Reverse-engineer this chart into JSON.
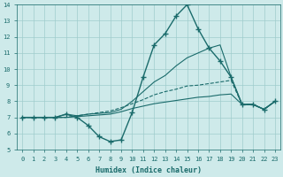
{
  "xlabel": "Humidex (Indice chaleur)",
  "xlim": [
    -0.5,
    23.5
  ],
  "ylim": [
    5,
    14
  ],
  "yticks": [
    5,
    6,
    7,
    8,
    9,
    10,
    11,
    12,
    13,
    14
  ],
  "xticks": [
    0,
    1,
    2,
    3,
    4,
    5,
    6,
    7,
    8,
    9,
    10,
    11,
    12,
    13,
    14,
    15,
    16,
    17,
    18,
    19,
    20,
    21,
    22,
    23
  ],
  "background_color": "#ceeaea",
  "line_color": "#1a6b6b",
  "grid_color": "#a0cccc",
  "series_main": [
    7.0,
    7.0,
    7.0,
    7.0,
    7.2,
    7.0,
    6.5,
    5.8,
    5.5,
    5.6,
    7.3,
    9.5,
    11.5,
    12.2,
    13.3,
    14.0,
    12.5,
    11.3,
    10.5,
    9.5,
    7.8,
    7.8,
    7.5,
    8.0
  ],
  "series_upper": [
    7.0,
    7.0,
    7.0,
    7.0,
    7.2,
    7.1,
    7.2,
    7.25,
    7.3,
    7.5,
    8.0,
    8.6,
    9.2,
    9.6,
    10.2,
    10.7,
    11.0,
    11.3,
    11.5,
    9.5,
    7.8,
    7.8,
    7.5,
    8.0
  ],
  "series_mid": [
    7.0,
    7.0,
    7.0,
    7.0,
    7.0,
    7.1,
    7.2,
    7.3,
    7.4,
    7.6,
    7.85,
    8.1,
    8.4,
    8.6,
    8.75,
    8.95,
    9.0,
    9.1,
    9.2,
    9.3,
    7.8,
    7.8,
    7.5,
    8.0
  ],
  "series_lower": [
    7.0,
    7.0,
    7.0,
    7.0,
    7.0,
    7.05,
    7.1,
    7.15,
    7.2,
    7.35,
    7.55,
    7.7,
    7.85,
    7.95,
    8.05,
    8.15,
    8.25,
    8.3,
    8.4,
    8.45,
    7.8,
    7.8,
    7.5,
    8.0
  ]
}
